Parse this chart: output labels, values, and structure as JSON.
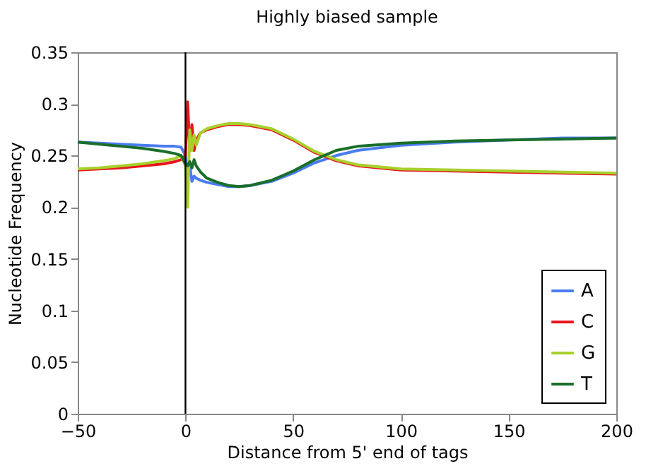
{
  "chart_data": {
    "type": "line",
    "title": "Highly biased sample",
    "xlabel": "Distance from 5' end of tags",
    "ylabel": "Nucleotide Frequency",
    "x": [
      -50,
      -40,
      -30,
      -20,
      -10,
      -5,
      -2,
      0,
      1,
      2,
      3,
      4,
      5,
      7,
      10,
      15,
      20,
      25,
      30,
      40,
      50,
      60,
      70,
      80,
      100,
      125,
      150,
      175,
      200
    ],
    "series": [
      {
        "name": "A",
        "color": "#4a7cf0",
        "values": [
          0.263,
          0.262,
          0.261,
          0.26,
          0.259,
          0.259,
          0.258,
          0.25,
          0.23,
          0.24,
          0.225,
          0.23,
          0.228,
          0.226,
          0.224,
          0.222,
          0.22,
          0.22,
          0.221,
          0.225,
          0.233,
          0.243,
          0.25,
          0.255,
          0.26,
          0.263,
          0.265,
          0.267,
          0.267
        ]
      },
      {
        "name": "C",
        "color": "#e8141c",
        "values": [
          0.236,
          0.237,
          0.238,
          0.24,
          0.242,
          0.244,
          0.246,
          0.25,
          0.302,
          0.255,
          0.28,
          0.255,
          0.265,
          0.272,
          0.275,
          0.278,
          0.28,
          0.28,
          0.279,
          0.275,
          0.265,
          0.253,
          0.245,
          0.24,
          0.236,
          0.235,
          0.234,
          0.233,
          0.232
        ]
      },
      {
        "name": "G",
        "color": "#a8d02c",
        "values": [
          0.237,
          0.238,
          0.24,
          0.242,
          0.245,
          0.247,
          0.25,
          0.24,
          0.2,
          0.275,
          0.255,
          0.27,
          0.26,
          0.272,
          0.276,
          0.279,
          0.281,
          0.281,
          0.28,
          0.276,
          0.266,
          0.254,
          0.246,
          0.241,
          0.237,
          0.236,
          0.235,
          0.234,
          0.233
        ]
      },
      {
        "name": "T",
        "color": "#1a6e2a",
        "values": [
          0.263,
          0.261,
          0.259,
          0.257,
          0.254,
          0.252,
          0.25,
          0.242,
          0.24,
          0.244,
          0.238,
          0.246,
          0.24,
          0.234,
          0.228,
          0.224,
          0.221,
          0.22,
          0.221,
          0.226,
          0.235,
          0.246,
          0.255,
          0.259,
          0.262,
          0.264,
          0.265,
          0.266,
          0.267
        ]
      }
    ],
    "xlim": [
      -50,
      200
    ],
    "xticks": [
      -50,
      0,
      50,
      100,
      150,
      200
    ],
    "ylim": [
      0,
      0.35
    ],
    "yticks": [
      0,
      0.05,
      0.1,
      0.15,
      0.2,
      0.25,
      0.3,
      0.35
    ],
    "ref_lines": [
      {
        "axis": "x",
        "value": 0,
        "color": "#000000"
      }
    ],
    "grid": false,
    "legend": "bottom right"
  }
}
